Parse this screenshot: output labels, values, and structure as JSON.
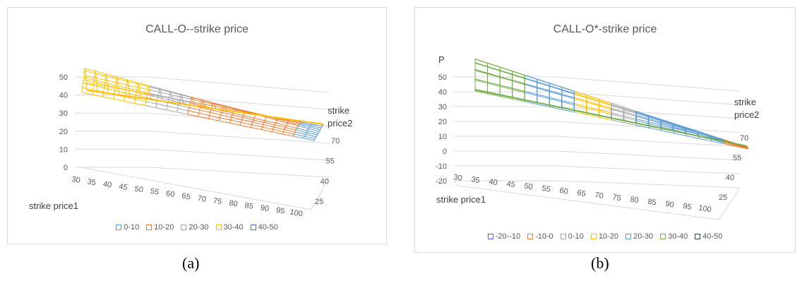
{
  "chart_data": [
    {
      "type": "surface",
      "title": "CALL-O--strike price",
      "xlabel": "strike price1",
      "ylabel": "strike price2",
      "zlabel": "",
      "x_ticks": [
        "30",
        "35",
        "40",
        "45",
        "50",
        "55",
        "60",
        "65",
        "70",
        "75",
        "80",
        "85",
        "90",
        "95",
        "100"
      ],
      "y_ticks": [
        "25",
        "40",
        "55",
        "70"
      ],
      "z_ticks": [
        "0",
        "10",
        "20",
        "30",
        "40",
        "50"
      ],
      "zlim": [
        0,
        50
      ],
      "legend": [
        {
          "name": "0-10",
          "color": "#5b9bd5"
        },
        {
          "name": "10-20",
          "color": "#ed7d31"
        },
        {
          "name": "20-30",
          "color": "#a5a5a5"
        },
        {
          "name": "30-40",
          "color": "#ffc000"
        },
        {
          "name": "40-50",
          "color": "#4472c4"
        }
      ],
      "legend_position": "bottom",
      "caption": "(a)"
    },
    {
      "type": "surface",
      "title": "CALL-O*-strike price",
      "xlabel": "strike price1",
      "ylabel": "strike price2",
      "zlabel": "P",
      "x_ticks": [
        "30",
        "35",
        "40",
        "45",
        "50",
        "55",
        "60",
        "65",
        "70",
        "75",
        "80",
        "85",
        "90",
        "95",
        "100"
      ],
      "y_ticks": [
        "25",
        "40",
        "55",
        "70"
      ],
      "z_ticks": [
        "-20",
        "-10",
        "0",
        "10",
        "20",
        "30",
        "40",
        "50"
      ],
      "zlim": [
        -20,
        50
      ],
      "legend": [
        {
          "name": "-20--10",
          "color": "#4472c4"
        },
        {
          "name": "-10-0",
          "color": "#ed7d31"
        },
        {
          "name": "0-10",
          "color": "#a5a5a5"
        },
        {
          "name": "10-20",
          "color": "#ffc000"
        },
        {
          "name": "20-30",
          "color": "#5b9bd5"
        },
        {
          "name": "30-40",
          "color": "#70ad47"
        },
        {
          "name": "40-50",
          "color": "#264478"
        }
      ],
      "legend_position": "bottom",
      "caption": "(b)"
    }
  ]
}
